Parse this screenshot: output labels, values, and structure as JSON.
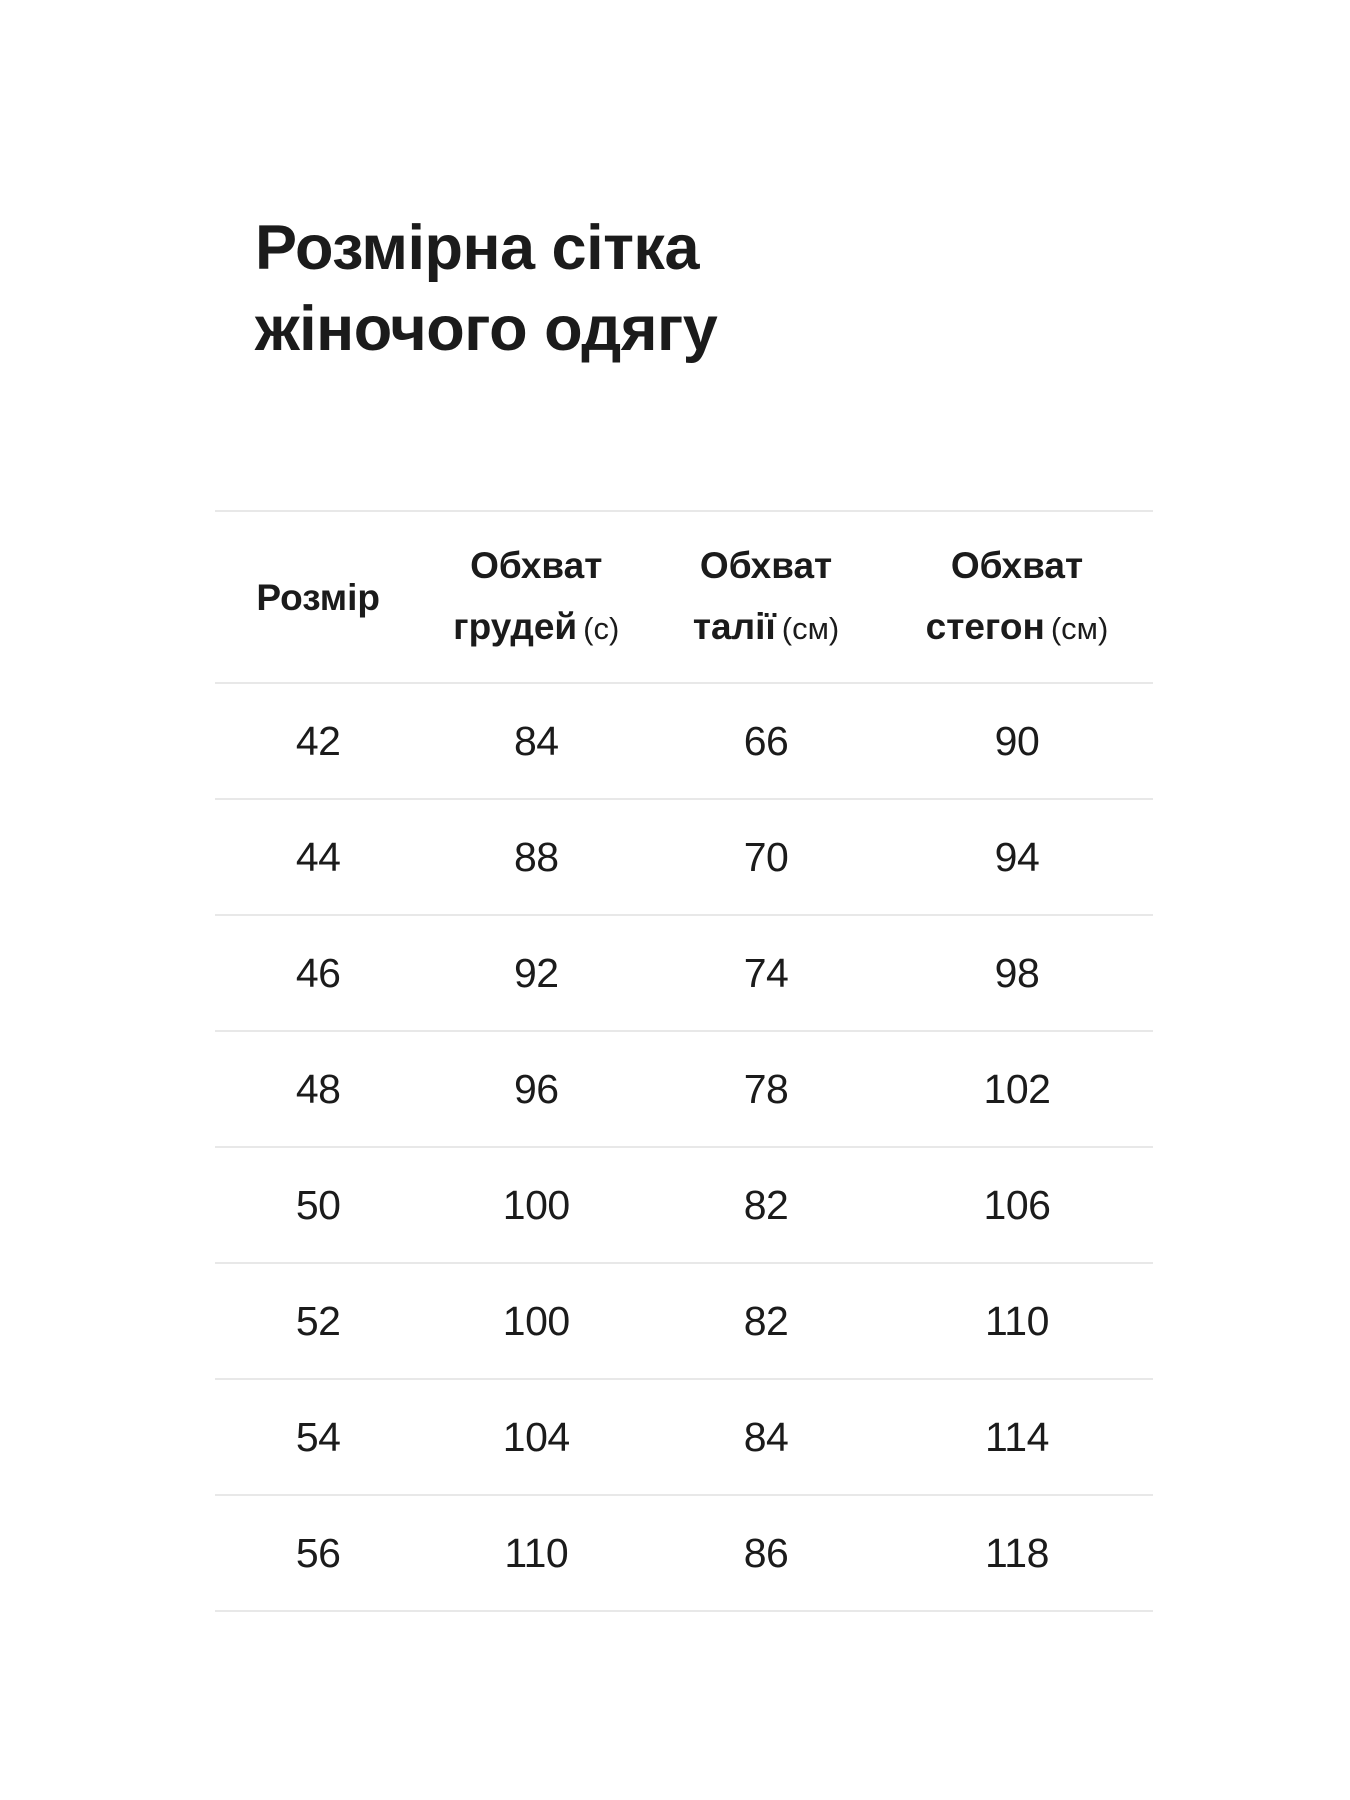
{
  "title": {
    "line1": "Розмірна сітка",
    "line2": "жіночого одягу"
  },
  "size_table": {
    "columns": [
      {
        "title": "Розмір",
        "title2": "",
        "unit": ""
      },
      {
        "title": "Обхват",
        "title2": "грудей",
        "unit": "(с)"
      },
      {
        "title": "Обхват",
        "title2": "талії",
        "unit": "(см)"
      },
      {
        "title": "Обхват",
        "title2": "стегон",
        "unit": "(см)"
      }
    ],
    "rows": [
      [
        "42",
        "84",
        "66",
        "90"
      ],
      [
        "44",
        "88",
        "70",
        "94"
      ],
      [
        "46",
        "92",
        "74",
        "98"
      ],
      [
        "48",
        "96",
        "78",
        "102"
      ],
      [
        "50",
        "100",
        "82",
        "106"
      ],
      [
        "52",
        "100",
        "82",
        "110"
      ],
      [
        "54",
        "104",
        "84",
        "114"
      ],
      [
        "56",
        "110",
        "86",
        "118"
      ]
    ]
  },
  "chart_data": {
    "type": "table",
    "title": "Розмірна сітка жіночого одягу",
    "columns": [
      "Розмір",
      "Обхват грудей (с)",
      "Обхват талії (см)",
      "Обхват стегон (см)"
    ],
    "rows": [
      [
        42,
        84,
        66,
        90
      ],
      [
        44,
        88,
        70,
        94
      ],
      [
        46,
        92,
        74,
        98
      ],
      [
        48,
        96,
        78,
        102
      ],
      [
        50,
        100,
        82,
        106
      ],
      [
        52,
        100,
        82,
        110
      ],
      [
        54,
        104,
        84,
        114
      ],
      [
        56,
        110,
        86,
        118
      ]
    ]
  },
  "colors": {
    "text": "#1b1b1b",
    "divider": "#e8e8e8",
    "background": "#ffffff"
  }
}
